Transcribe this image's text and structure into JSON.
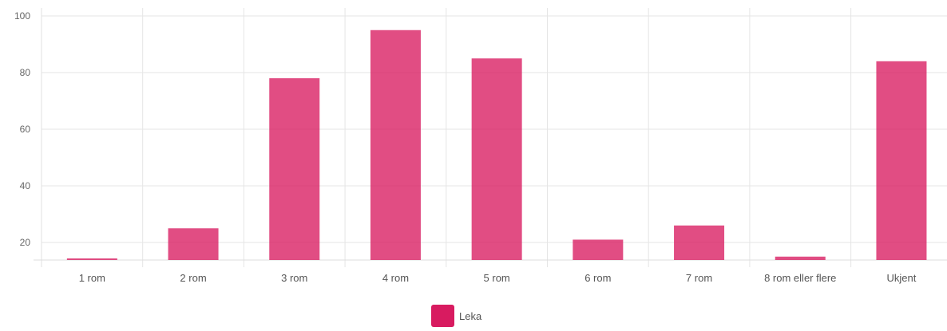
{
  "chart_data": {
    "type": "bar",
    "categories": [
      "1 rom",
      "2 rom",
      "3 rom",
      "4 rom",
      "5 rom",
      "6 rom",
      "7 rom",
      "8 rom eller flere",
      "Ukjent"
    ],
    "series": [
      {
        "name": "Leka",
        "values": [
          14,
          25,
          78,
          95,
          85,
          21,
          26,
          15,
          84
        ],
        "color": "#d81b60"
      }
    ],
    "y_ticks": [
      20,
      40,
      60,
      80,
      100
    ],
    "ylim": [
      13,
      103
    ],
    "grid": true,
    "legend": "bottom-center"
  }
}
